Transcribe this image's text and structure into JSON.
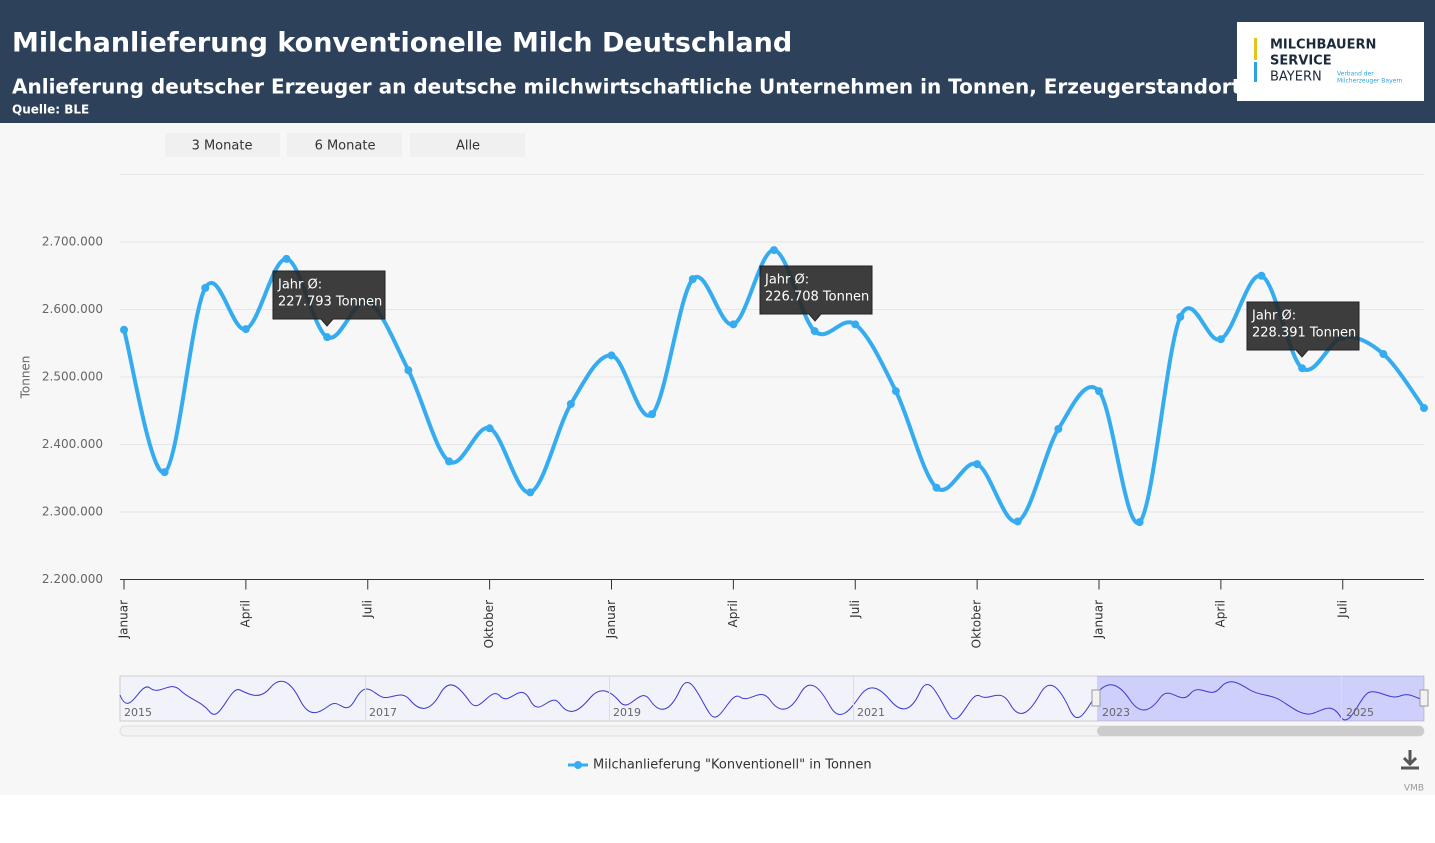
{
  "chart_data": {
    "type": "line",
    "title": "Milchanlieferung konventionelle Milch Deutschland",
    "subtitle": "Anlieferung deutscher Erzeuger an deutsche milchwirtschaftliche Unternehmen in Tonnen, Erzeugerstandort",
    "source": "Quelle: BLE",
    "logo": {
      "lines": [
        "MILCHBAUERN",
        "SERVICE",
        "BAYERN"
      ],
      "tagline": [
        "Verband der",
        "Milcherzeuger Bayern"
      ]
    },
    "range_buttons": [
      "3 Monate",
      "6 Monate",
      "Alle"
    ],
    "y_label": "Tonnen",
    "categories": [
      "Januar",
      null,
      null,
      "April",
      null,
      null,
      "Juli",
      null,
      null,
      "Oktober",
      null,
      null,
      "Januar",
      null,
      null,
      "April",
      null,
      null,
      "Juli",
      null,
      null,
      "Oktober",
      null,
      null,
      "Januar",
      null,
      null,
      "April",
      null,
      null,
      "Juli",
      null,
      null
    ],
    "series": [
      {
        "name": "Milchanlieferung \"Konventionell\" in Tonnen",
        "color": "#36acf0",
        "values": [
          2570000,
          2359000,
          2632000,
          2571000,
          2675000,
          2559000,
          2611000,
          2510000,
          2375000,
          2424000,
          2329000,
          2460000,
          2532000,
          2445000,
          2645000,
          2578000,
          2688000,
          2568000,
          2578000,
          2479000,
          2336000,
          2371000,
          2286000,
          2423000,
          2479000,
          2285000,
          2589000,
          2556000,
          2650000,
          2513000,
          2559000,
          2534000,
          2454000
        ]
      }
    ],
    "ylim": [
      2200000,
      2800000
    ],
    "yticks": [
      {
        "value": 2200000,
        "label": "2.200.000"
      },
      {
        "value": 2300000,
        "label": "2.300.000"
      },
      {
        "value": 2400000,
        "label": "2.400.000"
      },
      {
        "value": 2500000,
        "label": "2.500.000"
      },
      {
        "value": 2600000,
        "label": "2.600.000"
      },
      {
        "value": 2700000,
        "label": "2.700.000"
      }
    ],
    "grid": true,
    "annotations": [
      {
        "label": "Jahr Ø:",
        "value": "227.793 Tonnen"
      },
      {
        "label": "Jahr Ø:",
        "value": "226.708 Tonnen"
      },
      {
        "label": "Jahr Ø:",
        "value": "228.391 Tonnen"
      }
    ],
    "navigator": {
      "labels": [
        "2015",
        "2017",
        "2019",
        "2021",
        "2023",
        "2025"
      ]
    },
    "credit": "VMB"
  }
}
